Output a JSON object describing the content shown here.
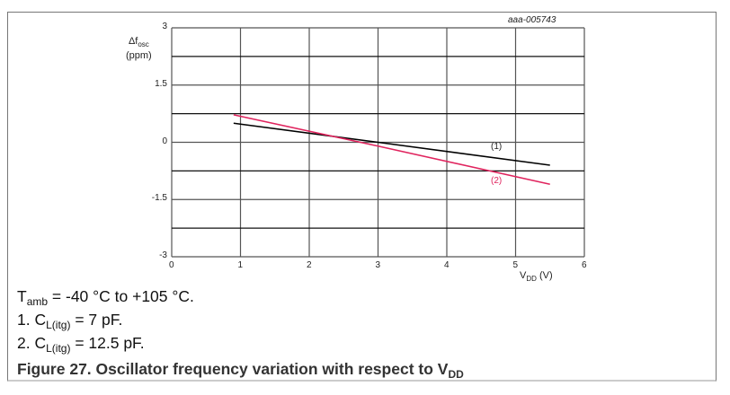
{
  "figure": {
    "code": "aaa-005743",
    "title_prefix": "Figure 27.  Oscillator frequency variation with respect to V",
    "title_sub": "DD",
    "notes": {
      "tamb_main": "T",
      "tamb_sub": "amb",
      "tamb_rest": " = -40 °C to +105 °C.",
      "n1_prefix": "1.   C",
      "n1_sub": "L(itg)",
      "n1_rest": " = 7 pF.",
      "n2_prefix": "2.   C",
      "n2_sub": "L(itg)",
      "n2_rest": " = 12.5 pF."
    }
  },
  "axes": {
    "ylabel_main": "Δf",
    "ylabel_sub": "osc",
    "ylabel_unit": "(ppm)",
    "xlabel_main": "V",
    "xlabel_sub": "DD",
    "xlabel_unit": " (V)",
    "yticks": [
      "3",
      "1.5",
      "0",
      "-1.5",
      "-3"
    ],
    "xticks": [
      "0",
      "1",
      "2",
      "3",
      "4",
      "5",
      "6"
    ]
  },
  "chart_data": {
    "type": "line",
    "title": "Oscillator frequency variation with respect to VDD",
    "xlabel": "VDD (V)",
    "ylabel": "Δfosc (ppm)",
    "xlim": [
      0,
      6
    ],
    "ylim": [
      -3,
      3
    ],
    "xticks": [
      0,
      1,
      2,
      3,
      4,
      5,
      6
    ],
    "yticks": [
      -3,
      -1.5,
      0,
      1.5,
      3
    ],
    "grid": true,
    "legend": "inline labels (1) and (2)",
    "annotation": "aaa-005743",
    "series": [
      {
        "name": "(1) CL(itg) = 7 pF",
        "color": "#000000",
        "x": [
          0.9,
          3.0,
          5.5
        ],
        "y": [
          0.5,
          0.0,
          -0.6
        ]
      },
      {
        "name": "(2) CL(itg) = 12.5 pF",
        "color": "#e0245e",
        "x": [
          0.9,
          3.0,
          5.5
        ],
        "y": [
          0.72,
          -0.1,
          -1.1
        ]
      }
    ]
  },
  "colors": {
    "series1": "#000000",
    "series2": "#e0245e",
    "grid": "#555555"
  }
}
